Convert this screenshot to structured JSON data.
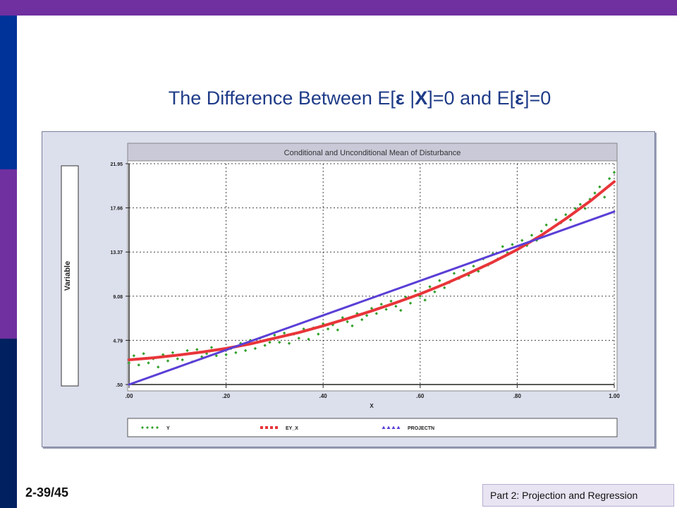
{
  "slide": {
    "title": {
      "parts": [
        {
          "text": "The Difference Between E[",
          "emph": false
        },
        {
          "text": "ε",
          "emph": true
        },
        {
          "text": " |",
          "emph": false
        },
        {
          "text": "X",
          "emph": true
        },
        {
          "text": "]=0 and E[",
          "emph": false
        },
        {
          "text": "ε",
          "emph": true
        },
        {
          "text": "]=0",
          "emph": false
        }
      ]
    },
    "page_number": "2-39/45",
    "footer": "Part 2: Projection and Regression",
    "colors": {
      "accent_purple": "#7030a0",
      "accent_blue": "#003399",
      "accent_navy": "#002060",
      "title": "#1f3c88"
    }
  },
  "chart_data": {
    "type": "scatter",
    "title": "Conditional and Unconditional Mean of Disturbance",
    "xlabel": "X",
    "ylabel": "Variable",
    "xlim": [
      0.0,
      1.0
    ],
    "ylim": [
      0.5,
      21.95
    ],
    "x_tick_labels": [
      ".00",
      ".20",
      ".40",
      ".60",
      ".80",
      "1.00"
    ],
    "x_ticks": [
      0.0,
      0.2,
      0.4,
      0.6,
      0.8,
      1.0
    ],
    "y_tick_labels": [
      ".50",
      "4.79",
      "9.08",
      "13.37",
      "17.66",
      "21.95"
    ],
    "y_ticks": [
      0.5,
      4.79,
      9.08,
      13.37,
      17.66,
      21.95
    ],
    "grid": true,
    "legend_position": "bottom",
    "series": [
      {
        "name": "Y",
        "kind": "points",
        "color": "#33a02c",
        "marker": "diamond",
        "x": [
          0.0,
          0.01,
          0.02,
          0.03,
          0.04,
          0.05,
          0.06,
          0.07,
          0.08,
          0.09,
          0.1,
          0.11,
          0.12,
          0.13,
          0.14,
          0.15,
          0.16,
          0.17,
          0.18,
          0.19,
          0.2,
          0.21,
          0.22,
          0.23,
          0.24,
          0.25,
          0.26,
          0.27,
          0.28,
          0.29,
          0.3,
          0.31,
          0.32,
          0.33,
          0.34,
          0.35,
          0.36,
          0.37,
          0.38,
          0.39,
          0.4,
          0.41,
          0.42,
          0.43,
          0.44,
          0.45,
          0.46,
          0.47,
          0.48,
          0.49,
          0.5,
          0.51,
          0.52,
          0.53,
          0.54,
          0.55,
          0.56,
          0.57,
          0.58,
          0.59,
          0.6,
          0.61,
          0.62,
          0.63,
          0.64,
          0.65,
          0.66,
          0.67,
          0.68,
          0.69,
          0.7,
          0.71,
          0.72,
          0.73,
          0.74,
          0.75,
          0.76,
          0.77,
          0.78,
          0.79,
          0.8,
          0.81,
          0.82,
          0.83,
          0.84,
          0.85,
          0.86,
          0.87,
          0.88,
          0.89,
          0.9,
          0.91,
          0.92,
          0.93,
          0.94,
          0.95,
          0.96,
          0.97,
          0.98,
          0.99,
          1.0
        ],
        "y": [
          2.6,
          3.3,
          2.4,
          3.5,
          2.6,
          3.0,
          2.2,
          3.4,
          2.8,
          3.6,
          3.0,
          2.9,
          3.8,
          2.7,
          3.9,
          3.2,
          3.5,
          4.1,
          3.3,
          3.9,
          3.4,
          4.0,
          3.6,
          4.5,
          3.8,
          4.8,
          4.0,
          5.0,
          4.3,
          4.6,
          5.3,
          4.6,
          5.5,
          4.5,
          5.4,
          5.0,
          5.9,
          4.9,
          6.0,
          5.4,
          6.4,
          5.9,
          6.3,
          5.8,
          7.0,
          6.6,
          6.2,
          7.4,
          6.8,
          7.2,
          7.9,
          7.4,
          8.3,
          7.8,
          8.6,
          8.1,
          7.7,
          9.0,
          8.4,
          9.6,
          9.1,
          8.7,
          10.0,
          9.5,
          10.6,
          9.9,
          10.4,
          11.3,
          10.8,
          11.6,
          11.1,
          12.0,
          11.5,
          12.7,
          12.1,
          13.2,
          12.7,
          13.9,
          13.3,
          14.1,
          13.6,
          14.5,
          14.0,
          15.0,
          14.5,
          15.4,
          16.0,
          15.6,
          16.5,
          16.2,
          17.0,
          16.5,
          17.6,
          18.0,
          17.6,
          18.5,
          19.1,
          19.7,
          18.7,
          20.5,
          21.1
        ]
      },
      {
        "name": "EY_X",
        "kind": "line",
        "color": "#e8353a",
        "x": [
          0.0,
          0.05,
          0.1,
          0.15,
          0.2,
          0.25,
          0.3,
          0.35,
          0.4,
          0.45,
          0.5,
          0.55,
          0.6,
          0.65,
          0.7,
          0.75,
          0.8,
          0.85,
          0.9,
          0.95,
          1.0
        ],
        "y": [
          2.9,
          3.1,
          3.35,
          3.65,
          4.0,
          4.45,
          5.0,
          5.55,
          6.2,
          6.9,
          7.65,
          8.45,
          9.3,
          10.25,
          11.3,
          12.4,
          13.6,
          15.0,
          16.6,
          18.3,
          20.2
        ]
      },
      {
        "name": "PROJECTN",
        "kind": "line",
        "color": "#5b3fd6",
        "x": [
          0.0,
          1.0
        ],
        "y": [
          0.5,
          17.3
        ]
      }
    ]
  }
}
